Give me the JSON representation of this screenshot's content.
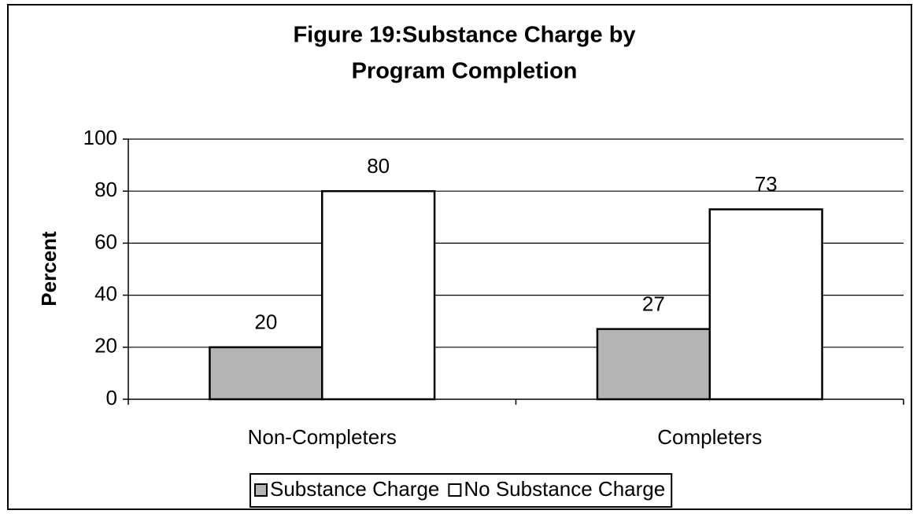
{
  "chart_data": {
    "type": "bar",
    "title": [
      "Figure 19:Substance Charge by",
      "Program Completion"
    ],
    "y_label": "Percent",
    "categories": [
      "Non-Completers",
      "Completers"
    ],
    "series": [
      {
        "name": "Substance Charge",
        "color": "#b4b4b4",
        "values": [
          20,
          27
        ]
      },
      {
        "name": "No Substance Charge",
        "color": "#ffffff",
        "values": [
          80,
          73
        ]
      }
    ],
    "ylim": [
      0,
      100
    ],
    "yticks": [
      0,
      20,
      40,
      60,
      80,
      100
    ],
    "grid": true,
    "legend": "bottom"
  }
}
